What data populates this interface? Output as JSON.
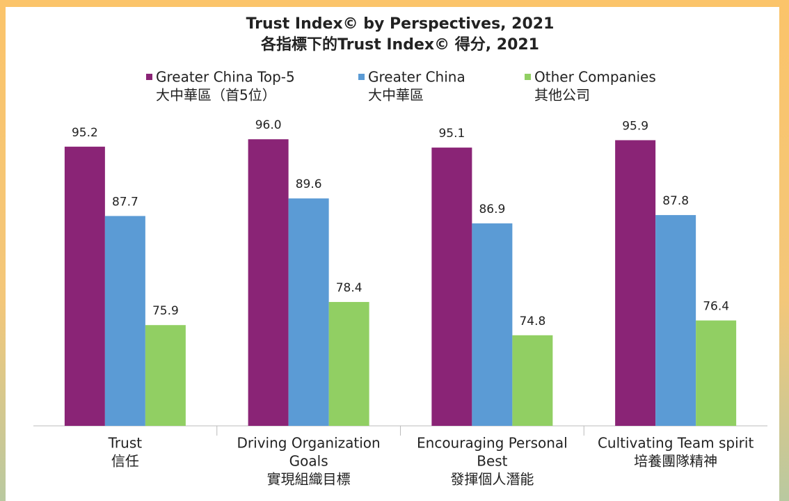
{
  "chart_data": {
    "type": "bar",
    "title": "Trust Index© by Perspectives, 2021",
    "subtitle": "各指標下的Trust Index© 得分, 2021",
    "categories": [
      [
        "Trust",
        "信任"
      ],
      [
        "Driving Organization",
        "Goals",
        "實現組織目標"
      ],
      [
        "Encouraging Personal",
        "Best",
        "發揮個人潛能"
      ],
      [
        "Cultivating Team spirit",
        "培養團隊精神"
      ]
    ],
    "series": [
      {
        "name": [
          "Greater China Top-5",
          "大中華區（首5位）"
        ],
        "color": "#8a2476",
        "values": [
          95.2,
          96.0,
          95.1,
          95.9
        ],
        "value_labels": [
          "95.2",
          "96.0",
          "95.1",
          "95.9"
        ]
      },
      {
        "name": [
          "Greater China",
          "大中華區"
        ],
        "color": "#5b9bd5",
        "values": [
          87.7,
          89.6,
          86.9,
          87.8
        ]
      },
      {
        "name": [
          "Other Companies",
          "其他公司"
        ],
        "color": "#91cf63",
        "values": [
          75.9,
          78.4,
          74.8,
          76.4
        ]
      }
    ],
    "ylim": [
      65,
      100
    ]
  }
}
